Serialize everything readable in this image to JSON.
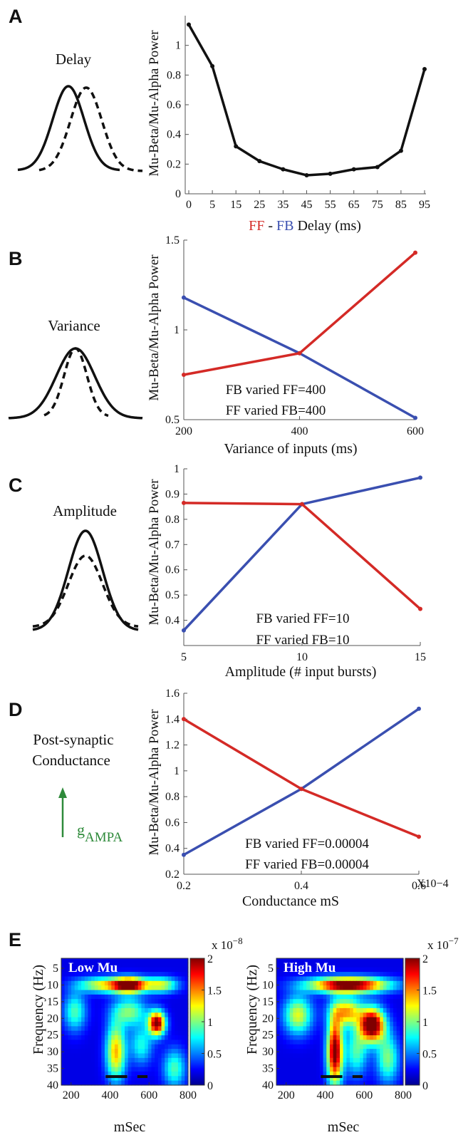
{
  "colors": {
    "ff": "#d42a26",
    "fb": "#3a4fb0",
    "black": "#111111",
    "ampa": "#2e8a3a"
  },
  "panels": {
    "A": {
      "label": "A",
      "side_label": "Delay",
      "ylabel": "Mu-Beta/Mu-Alpha Power",
      "xlabel_parts": [
        "FF",
        " - ",
        "FB",
        " Delay (ms)"
      ],
      "xticks": [
        "0",
        "5",
        "15",
        "25",
        "35",
        "45",
        "55",
        "65",
        "75",
        "85",
        "95"
      ],
      "yticks": [
        "0",
        "0.2",
        "0.4",
        "0.6",
        "0.8",
        "1"
      ]
    },
    "B": {
      "label": "B",
      "side_label": "Variance",
      "ylabel": "Mu-Beta/Mu-Alpha Power",
      "xlabel": "Variance of inputs (ms)",
      "xticks": [
        "200",
        "400",
        "600"
      ],
      "yticks": [
        "0.5",
        "1",
        "1.5"
      ],
      "legend": [
        "FB varied FF=400",
        "FF varied FB=400"
      ]
    },
    "C": {
      "label": "C",
      "side_label": "Amplitude",
      "ylabel": "Mu-Beta/Mu-Alpha Power",
      "xlabel": "Amplitude (# input bursts)",
      "xticks": [
        "5",
        "10",
        "15"
      ],
      "yticks": [
        "0.4",
        "0.5",
        "0.6",
        "0.7",
        "0.8",
        "0.9",
        "1"
      ],
      "legend": [
        "FB varied FF=10",
        "FF varied FB=10"
      ]
    },
    "D": {
      "label": "D",
      "side_label_lines": [
        "Post-synaptic",
        "Conductance"
      ],
      "gampa_main": "g",
      "gampa_sub": "AMPA",
      "ylabel": "Mu-Beta/Mu-Alpha Power",
      "xlabel": "Conductance mS",
      "xticks": [
        "0.2",
        "0.4",
        "0.6"
      ],
      "x_exponent": "X10−4",
      "yticks": [
        "0.2",
        "0.4",
        "0.6",
        "0.8",
        "1",
        "1.2",
        "1.4",
        "1.6"
      ],
      "legend": [
        "FB varied FF=0.00004",
        "FF varied FB=0.00004"
      ]
    },
    "E": {
      "label": "E",
      "ylabel": "Frequency (Hz)",
      "xlabel": "mSec",
      "xticks": [
        "200",
        "400",
        "600",
        "800"
      ],
      "yticks": [
        "5",
        "10",
        "15",
        "20",
        "25",
        "30",
        "35",
        "40"
      ],
      "left": {
        "title": "Low Mu",
        "cb_ticks": [
          "0",
          "0.5",
          "1",
          "1.5",
          "2"
        ],
        "cb_exp": "x 10",
        "cb_exp_power": "−8"
      },
      "right": {
        "title": "High Mu",
        "cb_ticks": [
          "0",
          "0.5",
          "1",
          "1.5",
          "2"
        ],
        "cb_exp": "x 10",
        "cb_exp_power": "−7"
      }
    }
  },
  "chart_data": [
    {
      "panel": "A",
      "type": "line",
      "x": [
        0,
        5,
        15,
        25,
        35,
        45,
        55,
        65,
        75,
        85,
        95
      ],
      "series": [
        {
          "values": [
            1.14,
            0.86,
            0.32,
            0.22,
            0.165,
            0.125,
            0.135,
            0.165,
            0.18,
            0.29,
            0.84
          ]
        }
      ],
      "ylim": [
        0,
        1.2
      ],
      "xscale": "categorical-evenly-spaced"
    },
    {
      "panel": "B",
      "type": "line",
      "x": [
        200,
        400,
        600
      ],
      "series": [
        {
          "name": "FB varied FF=400",
          "values": [
            1.18,
            0.87,
            0.51
          ]
        },
        {
          "name": "FF varied FB=400",
          "values": [
            0.75,
            0.87,
            1.43
          ]
        }
      ],
      "xlim": [
        200,
        600
      ],
      "ylim": [
        0.5,
        1.5
      ]
    },
    {
      "panel": "C",
      "type": "line",
      "x": [
        5,
        10,
        15
      ],
      "series": [
        {
          "name": "FB varied FF=10",
          "values": [
            0.36,
            0.86,
            0.965
          ]
        },
        {
          "name": "FF varied FB=10",
          "values": [
            0.865,
            0.86,
            0.445
          ]
        }
      ],
      "xlim": [
        5,
        15
      ],
      "ylim": [
        0.3,
        1.0
      ]
    },
    {
      "panel": "D",
      "type": "line",
      "x": [
        0.2,
        0.4,
        0.6
      ],
      "series": [
        {
          "name": "FB varied FF=0.00004",
          "values": [
            0.35,
            0.86,
            1.48
          ]
        },
        {
          "name": "FF varied FB=0.00004",
          "values": [
            1.4,
            0.86,
            0.49
          ]
        }
      ],
      "xlim": [
        0.2,
        0.6
      ],
      "ylim": [
        0.2,
        1.6
      ]
    },
    {
      "panel": "E-left",
      "type": "heatmap",
      "title": "Low Mu",
      "xlim": [
        150,
        800
      ],
      "ylim": [
        40,
        2
      ],
      "clim": [
        0,
        2e-08
      ],
      "blobs": [
        {
          "x": 500,
          "y": 10,
          "sx": 60,
          "sy": 1.6,
          "v": 0.95
        },
        {
          "x": 360,
          "y": 10,
          "sx": 90,
          "sy": 1.6,
          "v": 0.5
        },
        {
          "x": 660,
          "y": 10,
          "sx": 60,
          "sy": 1.6,
          "v": 0.5
        },
        {
          "x": 640,
          "y": 21.5,
          "sx": 30,
          "sy": 2.5,
          "v": 0.95
        },
        {
          "x": 430,
          "y": 30,
          "sx": 35,
          "sy": 6,
          "v": 0.6
        },
        {
          "x": 500,
          "y": 18,
          "sx": 60,
          "sy": 3,
          "v": 0.4
        },
        {
          "x": 220,
          "y": 18,
          "sx": 40,
          "sy": 4,
          "v": 0.35
        },
        {
          "x": 730,
          "y": 35,
          "sx": 40,
          "sy": 4,
          "v": 0.35
        },
        {
          "x": 560,
          "y": 28,
          "sx": 40,
          "sy": 4,
          "v": 0.3
        }
      ]
    },
    {
      "panel": "E-right",
      "type": "heatmap",
      "title": "High Mu",
      "xlim": [
        150,
        800
      ],
      "ylim": [
        40,
        2
      ],
      "clim": [
        0,
        2e-07
      ],
      "blobs": [
        {
          "x": 520,
          "y": 10,
          "sx": 140,
          "sy": 1.6,
          "v": 1.0
        },
        {
          "x": 640,
          "y": 22,
          "sx": 45,
          "sy": 3.5,
          "v": 1.05
        },
        {
          "x": 450,
          "y": 30,
          "sx": 28,
          "sy": 7,
          "v": 0.95
        },
        {
          "x": 510,
          "y": 18,
          "sx": 55,
          "sy": 3,
          "v": 0.6
        },
        {
          "x": 260,
          "y": 19,
          "sx": 50,
          "sy": 4,
          "v": 0.5
        },
        {
          "x": 720,
          "y": 32,
          "sx": 40,
          "sy": 5,
          "v": 0.4
        },
        {
          "x": 560,
          "y": 30,
          "sx": 40,
          "sy": 5,
          "v": 0.35
        }
      ]
    }
  ]
}
